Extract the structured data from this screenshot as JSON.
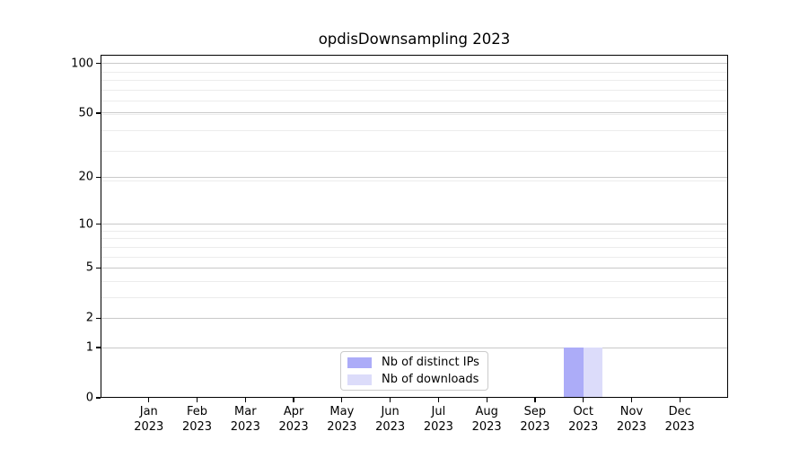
{
  "figure": {
    "title": "opdisDownsampling 2023"
  },
  "chart_data": {
    "type": "bar",
    "title": "opdisDownsampling 2023",
    "categories": [
      "Jan 2023",
      "Feb 2023",
      "Mar 2023",
      "Apr 2023",
      "May 2023",
      "Jun 2023",
      "Jul 2023",
      "Aug 2023",
      "Sep 2023",
      "Oct 2023",
      "Nov 2023",
      "Dec 2023"
    ],
    "series": [
      {
        "name": "Nb of distinct IPs",
        "color": "#acacf8",
        "values": [
          0,
          0,
          0,
          0,
          0,
          0,
          0,
          0,
          0,
          1,
          0,
          0
        ]
      },
      {
        "name": "Nb of downloads",
        "color": "#dcdcfa",
        "values": [
          0,
          0,
          0,
          0,
          0,
          0,
          0,
          0,
          0,
          1,
          0,
          0
        ]
      }
    ],
    "xlabel": "",
    "ylabel": "",
    "yscale": "log1p",
    "ylim": [
      0,
      113
    ],
    "yticks_major": [
      0,
      1,
      2,
      5,
      10,
      20,
      50,
      100
    ],
    "yticks_minor": [
      3,
      4,
      6,
      7,
      8,
      9,
      19,
      29,
      39,
      49,
      59,
      69,
      79,
      89
    ],
    "grid": "both",
    "legend": {
      "position": "inside-bottom-center",
      "entries": [
        "Nb of distinct IPs",
        "Nb of downloads"
      ]
    },
    "colors": {
      "distinct_ips_bar": "#acacf8",
      "downloads_bar": "#dcdcfa",
      "grid_major": "#c9c9c9",
      "grid_minor": "#ececec",
      "axis": "#000000",
      "background": "#ffffff"
    }
  }
}
